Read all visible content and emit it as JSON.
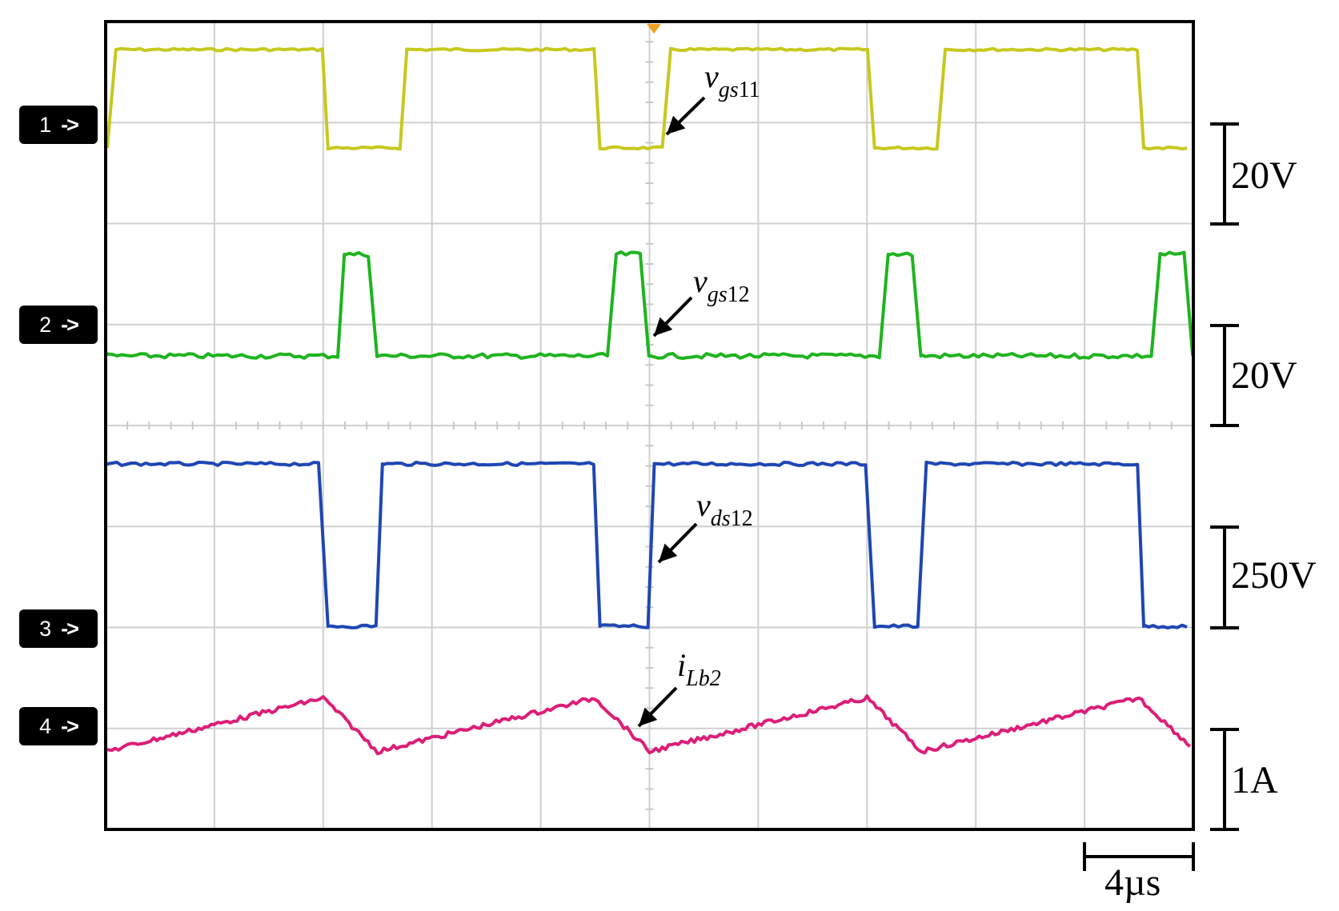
{
  "chart_data": {
    "type": "line",
    "title": "",
    "xlabel": "",
    "ylabel": "",
    "grid": true,
    "time_scale": "4µs",
    "period_us": 13.3,
    "channels": [
      {
        "number": "1",
        "name_base": "v",
        "name_sub": "gs",
        "name_sub2": "11",
        "scale": "20V",
        "color": "#c8c81e",
        "low": 0,
        "high": 1,
        "rise_us": [
          0.2,
          10.9,
          20.6,
          30.7
        ],
        "fall_us": [
          8.0,
          18.0,
          28.1,
          38.0
        ]
      },
      {
        "number": "2",
        "name_base": "v",
        "name_sub": "gs",
        "name_sub2": "12",
        "scale": "20V",
        "color": "#1eb41e",
        "low": 0,
        "high": 1,
        "rise_us": [
          8.6,
          18.6,
          28.6,
          38.6
        ],
        "fall_us": [
          9.8,
          19.8,
          29.8,
          39.8
        ]
      },
      {
        "number": "3",
        "name_base": "v",
        "name_sub": "ds",
        "name_sub2": "12",
        "scale": "250V",
        "color": "#1e46b4",
        "low": 0,
        "high": 1,
        "fall_us": [
          8.0,
          18.0,
          28.1,
          38.0
        ],
        "rise_us": [
          10.0,
          20.0,
          30.0
        ]
      },
      {
        "number": "4",
        "name_base": "i",
        "name_sub": "Lb2",
        "name_sub2": "",
        "scale": "1A",
        "color": "#dc1e78",
        "points_us_div": [
          [
            0,
            -0.25
          ],
          [
            8.0,
            0.28
          ],
          [
            10.0,
            -0.25
          ],
          [
            18.0,
            0.28
          ],
          [
            20.0,
            -0.25
          ],
          [
            28.0,
            0.28
          ],
          [
            30.0,
            -0.25
          ],
          [
            38.0,
            0.28
          ],
          [
            39.9,
            -0.2
          ]
        ]
      }
    ]
  }
}
